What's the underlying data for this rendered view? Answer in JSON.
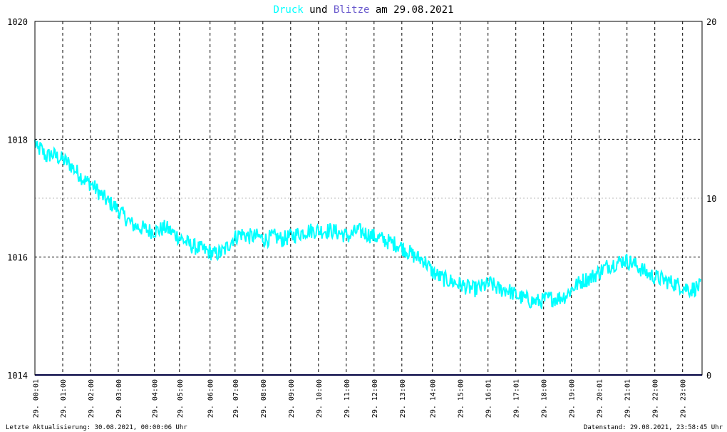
{
  "title": {
    "part1": "Druck",
    "part2": " und ",
    "part3": "Blitze",
    "part4": " am 29.08.2021"
  },
  "footer": {
    "left": "Letzte Aktualisierung: 30.08.2021, 00:00:06 Uhr",
    "right": "Datenstand: 29.08.2021, 23:58:45 Uhr"
  },
  "colors": {
    "druck": "#00ffff",
    "blitze": "#6a5acd",
    "baseline": "#00007f",
    "title_text": "#000000",
    "grid": "#000000",
    "grid_minor": "#bbbbbb"
  },
  "chart_data": {
    "type": "line",
    "title": "Druck und Blitze am 29.08.2021",
    "y_left": {
      "ylim": [
        1014,
        1020
      ],
      "ticks": [
        1014,
        1016,
        1018,
        1020
      ]
    },
    "y_right": {
      "ylim": [
        0,
        20
      ],
      "ticks": [
        0,
        10,
        20
      ]
    },
    "x_ticks": [
      {
        "label": "29. 00:01",
        "hour": 0.0167
      },
      {
        "label": "29. 01:00",
        "hour": 1
      },
      {
        "label": "29. 02:00",
        "hour": 2
      },
      {
        "label": "29. 03:00",
        "hour": 3
      },
      {
        "label": "29. 04:00",
        "hour": 4.3
      },
      {
        "label": "29. 05:00",
        "hour": 5.2
      },
      {
        "label": "29. 06:00",
        "hour": 6.3
      },
      {
        "label": "29. 07:00",
        "hour": 7.2
      },
      {
        "label": "29. 08:00",
        "hour": 8.2
      },
      {
        "label": "29. 09:00",
        "hour": 9.2
      },
      {
        "label": "29. 10:00",
        "hour": 10.2
      },
      {
        "label": "29. 11:00",
        "hour": 11.2
      },
      {
        "label": "29. 12:00",
        "hour": 12.2
      },
      {
        "label": "29. 13:00",
        "hour": 13.2
      },
      {
        "label": "29. 14:00",
        "hour": 14.3
      },
      {
        "label": "29. 15:00",
        "hour": 15.3
      },
      {
        "label": "29. 16:01",
        "hour": 16.3
      },
      {
        "label": "29. 17:01",
        "hour": 17.3
      },
      {
        "label": "29. 18:00",
        "hour": 18.3
      },
      {
        "label": "29. 19:00",
        "hour": 19.3
      },
      {
        "label": "29. 20:01",
        "hour": 20.3
      },
      {
        "label": "29. 21:01",
        "hour": 21.3
      },
      {
        "label": "29. 22:00",
        "hour": 22.3
      },
      {
        "label": "29. 23:00",
        "hour": 23.3
      }
    ],
    "series": [
      {
        "name": "Druck",
        "axis": "left",
        "x": [
          0.0,
          0.1,
          0.2,
          0.4,
          0.6,
          0.8,
          1.0,
          1.2,
          1.5,
          1.8,
          2.0,
          2.3,
          2.6,
          2.9,
          3.2,
          3.5,
          3.8,
          4.1,
          4.4,
          4.7,
          5.0,
          5.3,
          5.6,
          5.9,
          6.2,
          6.5,
          6.8,
          7.1,
          7.4,
          7.7,
          8.0,
          8.3,
          8.6,
          8.9,
          9.2,
          9.5,
          9.8,
          10.1,
          10.4,
          10.7,
          11.0,
          11.3,
          11.6,
          11.9,
          12.2,
          12.5,
          12.8,
          13.1,
          13.4,
          13.7,
          14.0,
          14.3,
          14.6,
          14.9,
          15.2,
          15.5,
          15.8,
          16.1,
          16.4,
          16.7,
          17.0,
          17.3,
          17.6,
          17.9,
          18.2,
          18.5,
          18.8,
          19.1,
          19.4,
          19.7,
          20.0,
          20.3,
          20.6,
          20.9,
          21.2,
          21.5,
          21.8,
          22.1,
          22.4,
          22.7,
          23.0,
          23.3,
          23.6,
          23.9
        ],
        "y": [
          1017.95,
          1017.8,
          1017.85,
          1017.7,
          1017.75,
          1017.7,
          1017.65,
          1017.6,
          1017.45,
          1017.3,
          1017.25,
          1017.1,
          1016.95,
          1016.85,
          1016.7,
          1016.55,
          1016.5,
          1016.45,
          1016.45,
          1016.5,
          1016.4,
          1016.3,
          1016.2,
          1016.15,
          1016.1,
          1016.05,
          1016.1,
          1016.3,
          1016.4,
          1016.35,
          1016.35,
          1016.3,
          1016.35,
          1016.3,
          1016.35,
          1016.4,
          1016.45,
          1016.45,
          1016.45,
          1016.45,
          1016.4,
          1016.35,
          1016.45,
          1016.4,
          1016.35,
          1016.3,
          1016.25,
          1016.2,
          1016.1,
          1016.0,
          1015.95,
          1015.75,
          1015.65,
          1015.6,
          1015.55,
          1015.5,
          1015.45,
          1015.5,
          1015.55,
          1015.45,
          1015.45,
          1015.35,
          1015.3,
          1015.25,
          1015.25,
          1015.3,
          1015.3,
          1015.35,
          1015.5,
          1015.6,
          1015.65,
          1015.75,
          1015.85,
          1015.9,
          1015.95,
          1015.9,
          1015.8,
          1015.7,
          1015.65,
          1015.6,
          1015.55,
          1015.5,
          1015.45,
          1015.5
        ]
      },
      {
        "name": "Blitze",
        "axis": "right",
        "x": [
          0,
          24
        ],
        "y": [
          0,
          0
        ]
      }
    ],
    "grid": true
  }
}
